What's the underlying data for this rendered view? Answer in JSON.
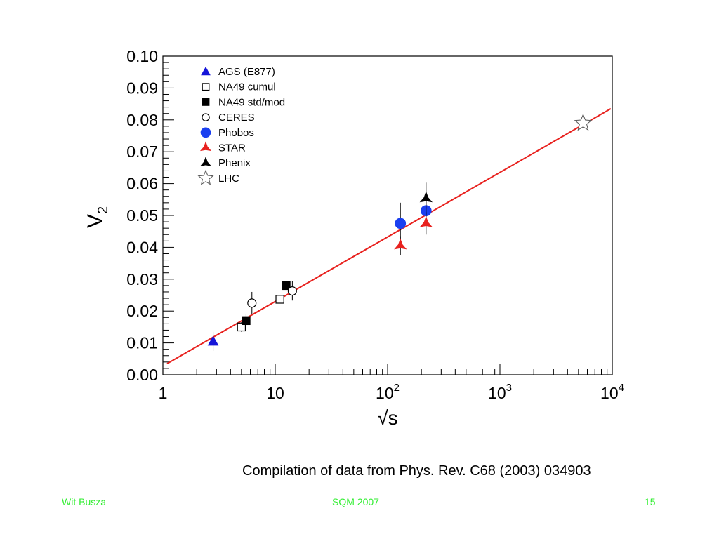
{
  "chart_data": {
    "type": "scatter",
    "ylabel_main": "V",
    "ylabel_sub": "2",
    "xlabel": "√s",
    "xscale": "log",
    "xlim": [
      1,
      10000
    ],
    "ylim": [
      0,
      0.1
    ],
    "grid": false,
    "legend_position": "top-left",
    "y_ticks": [
      "0.00",
      "0.01",
      "0.02",
      "0.03",
      "0.04",
      "0.05",
      "0.06",
      "0.07",
      "0.08",
      "0.09",
      "0.10"
    ],
    "x_ticks": [
      {
        "value": 1,
        "base": "1",
        "exp": ""
      },
      {
        "value": 10,
        "base": "10",
        "exp": ""
      },
      {
        "value": 100,
        "base": "10",
        "exp": "2"
      },
      {
        "value": 1000,
        "base": "10",
        "exp": "3"
      },
      {
        "value": 10000,
        "base": "10",
        "exp": "4"
      }
    ],
    "fit_line": {
      "color": "#e8211e",
      "points": [
        {
          "x": 1.09,
          "y": 0.0035
        },
        {
          "x": 9700,
          "y": 0.0835
        }
      ]
    },
    "series": [
      {
        "name": "AGS (E877)",
        "marker": "triangle",
        "color": "#1515d8",
        "fill": true,
        "points": [
          {
            "x": 2.8,
            "y": 0.0105,
            "err": 0.003
          }
        ]
      },
      {
        "name": "NA49 cumul",
        "marker": "square",
        "color": "#000000",
        "fill": false,
        "points": [
          {
            "x": 5.0,
            "y": 0.015,
            "err": 0.0015
          },
          {
            "x": 11.0,
            "y": 0.0237,
            "err": 0.001
          }
        ]
      },
      {
        "name": "NA49 std/mod",
        "marker": "square",
        "color": "#000000",
        "fill": true,
        "points": [
          {
            "x": 5.5,
            "y": 0.017,
            "err": 0.002
          },
          {
            "x": 12.5,
            "y": 0.028,
            "err": 0.001
          }
        ]
      },
      {
        "name": "CERES",
        "marker": "circle",
        "color": "#000000",
        "fill": false,
        "points": [
          {
            "x": 6.2,
            "y": 0.0225,
            "err": 0.0035
          },
          {
            "x": 14.2,
            "y": 0.0263,
            "err": 0.003
          }
        ]
      },
      {
        "name": "Phobos",
        "marker": "bigcircle",
        "color": "#1a3ff0",
        "fill": true,
        "points": [
          {
            "x": 130,
            "y": 0.0475,
            "err": 0.0065
          },
          {
            "x": 220,
            "y": 0.0515,
            "err": 0.0035
          }
        ]
      },
      {
        "name": "STAR",
        "marker": "star3",
        "color": "#e8211e",
        "fill": true,
        "points": [
          {
            "x": 130,
            "y": 0.0405,
            "err": 0.003
          },
          {
            "x": 220,
            "y": 0.0475,
            "err": 0.0035
          }
        ]
      },
      {
        "name": "Phenix",
        "marker": "star3",
        "color": "#000000",
        "fill": true,
        "points": [
          {
            "x": 220,
            "y": 0.0553,
            "err": 0.005
          }
        ]
      },
      {
        "name": "LHC",
        "marker": "star5",
        "color": "#555555",
        "fill": false,
        "points": [
          {
            "x": 5500,
            "y": 0.079,
            "err": 0
          }
        ]
      }
    ]
  },
  "caption": "Compilation of data from Phys. Rev. C68 (2003) 034903",
  "footer": {
    "author": "Wit Busza",
    "conference": "SQM 2007",
    "page": "15",
    "color": "#33ee33"
  }
}
